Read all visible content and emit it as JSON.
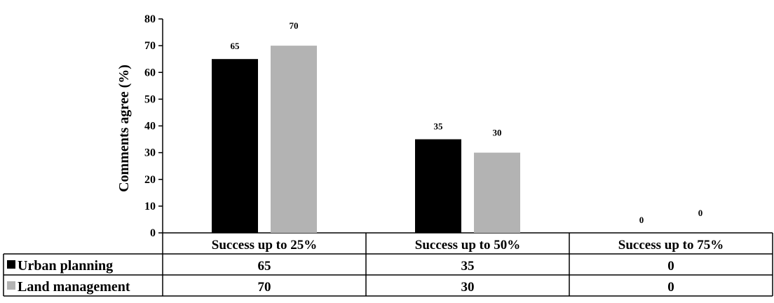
{
  "chart_data": {
    "type": "bar",
    "title": "",
    "ylabel": "Comments agree (%)",
    "ylim": [
      0,
      80
    ],
    "yticks": [
      0,
      10,
      20,
      30,
      40,
      50,
      60,
      70,
      80
    ],
    "categories": [
      "Success up to 25%",
      "Success up to 50%",
      "Success up to 75%"
    ],
    "series": [
      {
        "name": "Urban planning",
        "values": [
          65,
          35,
          0
        ],
        "color": "#000000"
      },
      {
        "name": "Land management",
        "values": [
          70,
          30,
          0
        ],
        "color": "#b3b3b3"
      }
    ],
    "data_labels": true,
    "legend": "data-table-below",
    "grid": false
  }
}
